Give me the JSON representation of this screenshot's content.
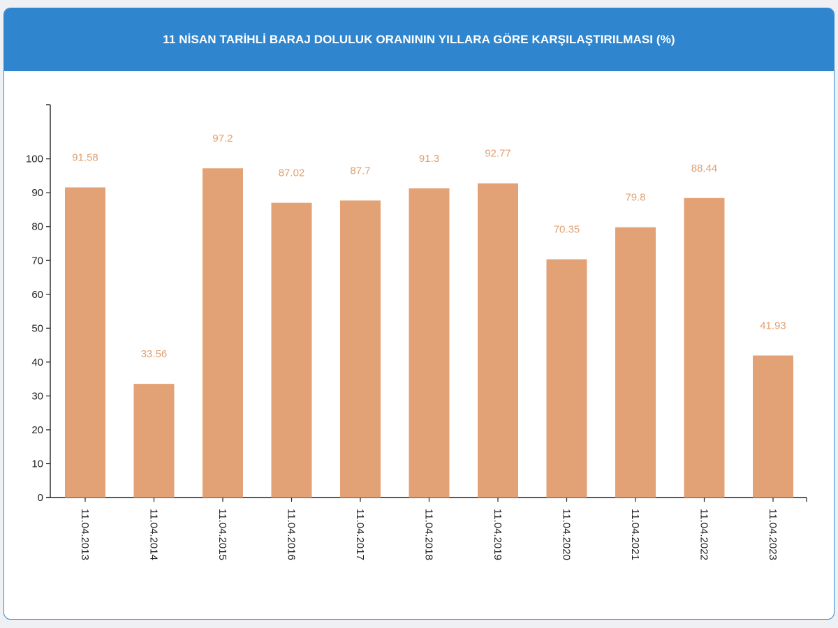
{
  "chart_data": {
    "type": "bar",
    "title": "11 NİSAN TARİHLİ BARAJ DOLULUK ORANININ YILLARA GÖRE KARŞILAŞTIRILMASI (%)",
    "xlabel": "",
    "ylabel": "",
    "categories": [
      "11.04.2013",
      "11.04.2014",
      "11.04.2015",
      "11.04.2016",
      "11.04.2017",
      "11.04.2018",
      "11.04.2019",
      "11.04.2020",
      "11.04.2021",
      "11.04.2022",
      "11.04.2023"
    ],
    "values": [
      91.58,
      33.56,
      97.2,
      87.02,
      87.7,
      91.3,
      92.77,
      70.35,
      79.8,
      88.44,
      41.93
    ],
    "value_labels": [
      "91.58",
      "33.56",
      "97.2",
      "87.02",
      "87.7",
      "91.3",
      "92.77",
      "70.35",
      "79.8",
      "88.44",
      "41.93"
    ],
    "y_ticks": [
      0,
      10,
      20,
      30,
      40,
      50,
      60,
      70,
      80,
      90,
      100
    ],
    "ylim": [
      0,
      116
    ],
    "grid": false,
    "legend": "none",
    "colors": {
      "bar": "#e3a275",
      "data_label": "#e0a070",
      "axis": "#222222",
      "header": "#2f86cf"
    }
  }
}
